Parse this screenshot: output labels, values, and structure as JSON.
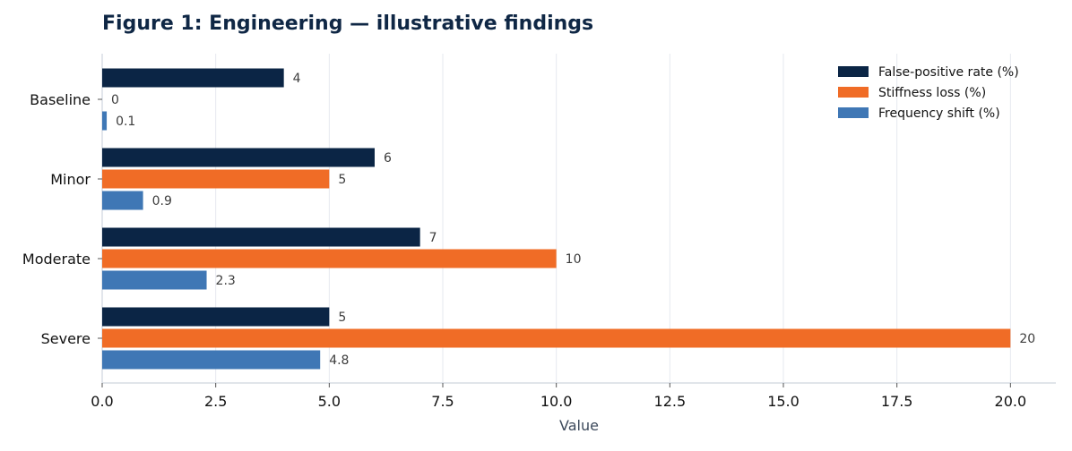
{
  "chart_data": {
    "type": "bar",
    "orientation": "horizontal",
    "title": "Figure 1: Engineering — illustrative findings",
    "xlabel": "Value",
    "ylabel": "",
    "categories": [
      "Baseline",
      "Minor",
      "Moderate",
      "Severe"
    ],
    "series": [
      {
        "name": "False-positive rate (%)",
        "color": "#0b2545",
        "values": [
          4,
          6,
          7,
          5
        ],
        "labels": [
          "4",
          "6",
          "7",
          "5"
        ]
      },
      {
        "name": "Stiffness loss (%)",
        "color": "#f06c26",
        "values": [
          0,
          5,
          10,
          20
        ],
        "labels": [
          "0",
          "5",
          "10",
          "20"
        ]
      },
      {
        "name": "Frequency shift (%)",
        "color": "#3f77b5",
        "values": [
          0.1,
          0.9,
          2.3,
          4.8
        ],
        "labels": [
          "0.1",
          "0.9",
          "2.3",
          "4.8"
        ]
      }
    ],
    "xlim": [
      0,
      21
    ],
    "xticks": [
      0,
      2.5,
      5,
      7.5,
      10,
      12.5,
      15,
      17.5,
      20
    ],
    "xtick_labels": [
      "0.0",
      "2.5",
      "5.0",
      "7.5",
      "10.0",
      "12.5",
      "15.0",
      "17.5",
      "20.0"
    ],
    "grid": "vertical",
    "legend_position": "top-right"
  }
}
